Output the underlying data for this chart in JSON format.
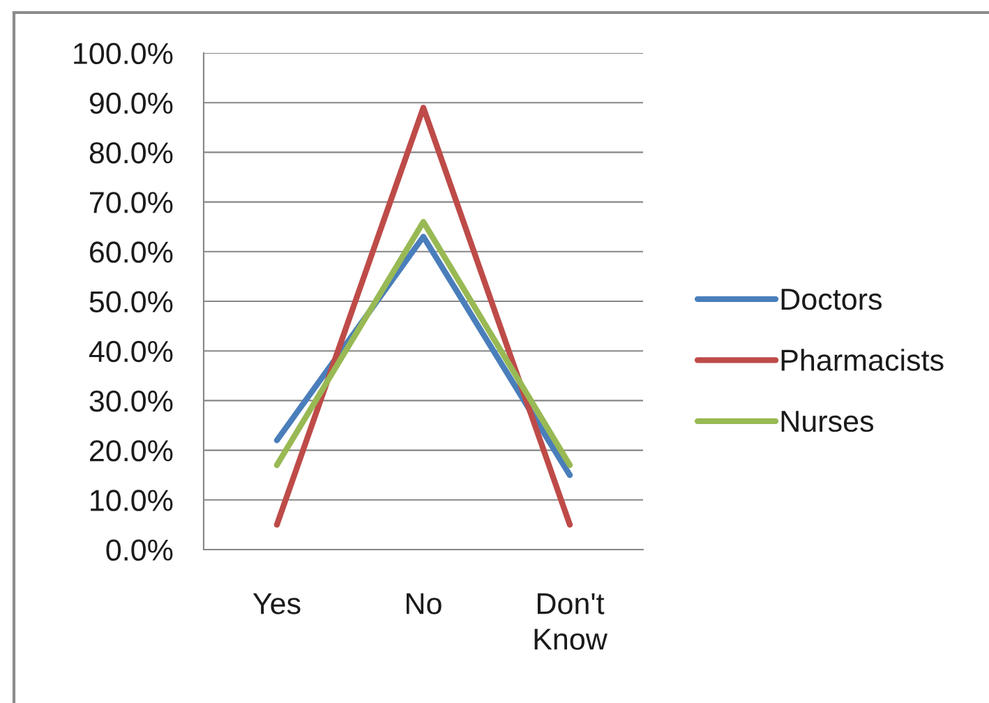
{
  "chart_data": {
    "type": "line",
    "categories": [
      "Yes",
      "No",
      "Don't Know"
    ],
    "series": [
      {
        "name": "Doctors",
        "color": "#4a7ebb",
        "values": [
          22,
          63,
          15
        ]
      },
      {
        "name": "Pharmacists",
        "color": "#be4b48",
        "values": [
          5,
          89,
          5
        ]
      },
      {
        "name": "Nurses",
        "color": "#98b954",
        "values": [
          17,
          66,
          17
        ]
      }
    ],
    "ylim": [
      0,
      100
    ],
    "yticks": [
      {
        "value": 0,
        "label": "0.0%"
      },
      {
        "value": 10,
        "label": "10.0%"
      },
      {
        "value": 20,
        "label": "20.0%"
      },
      {
        "value": 30,
        "label": "30.0%"
      },
      {
        "value": 40,
        "label": "40.0%"
      },
      {
        "value": 50,
        "label": "50.0%"
      },
      {
        "value": 60,
        "label": "60.0%"
      },
      {
        "value": 70,
        "label": "70.0%"
      },
      {
        "value": 80,
        "label": "80.0%"
      },
      {
        "value": 90,
        "label": "90.0%"
      },
      {
        "value": 100,
        "label": "100.0%"
      }
    ],
    "grid": "y",
    "legend": "right"
  }
}
